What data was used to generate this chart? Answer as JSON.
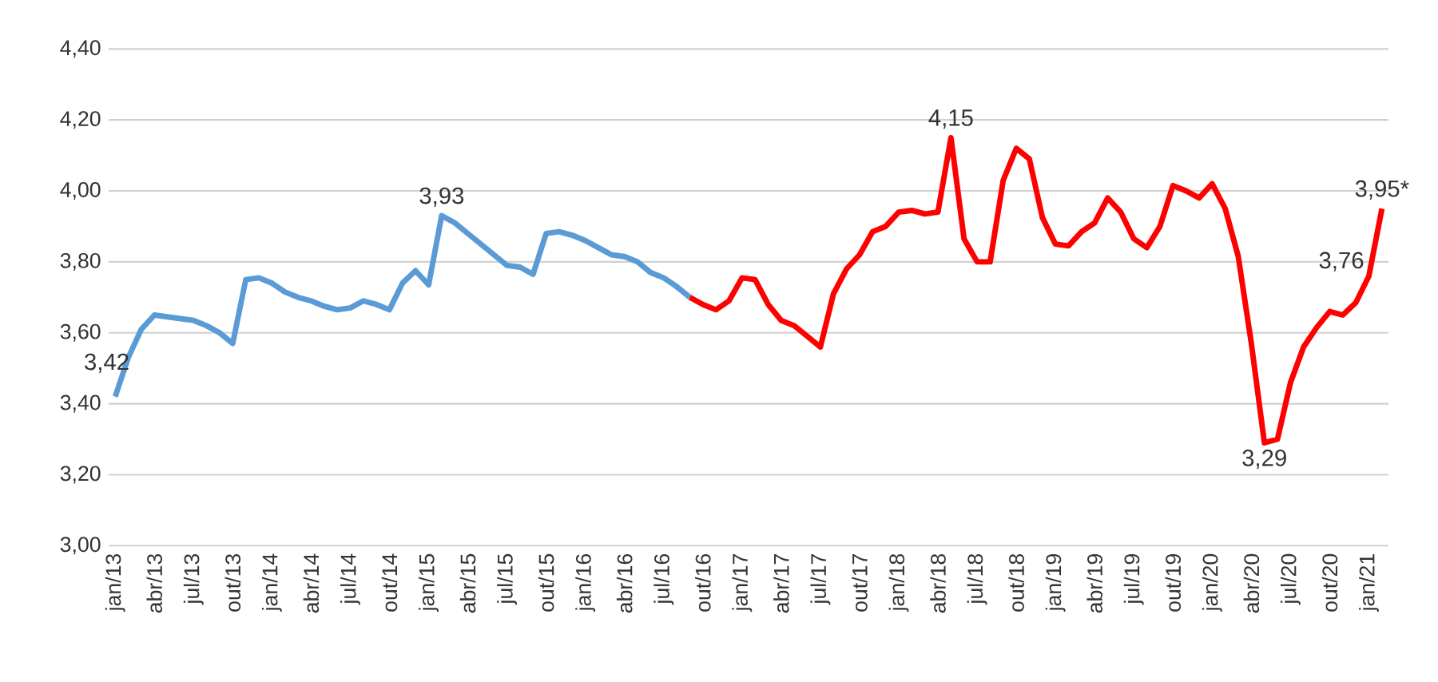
{
  "chart_data": {
    "type": "line",
    "categories": [
      "jan/13",
      null,
      null,
      "abr/13",
      null,
      null,
      "jul/13",
      null,
      null,
      "out/13",
      null,
      null,
      "jan/14",
      null,
      null,
      "abr/14",
      null,
      null,
      "jul/14",
      null,
      null,
      "out/14",
      null,
      null,
      "jan/15",
      null,
      null,
      "abr/15",
      null,
      null,
      "jul/15",
      null,
      null,
      "out/15",
      null,
      null,
      "jan/16",
      null,
      null,
      "abr/16",
      null,
      null,
      "jul/16",
      null,
      null,
      "out/16",
      null,
      null,
      "jan/17",
      null,
      null,
      "abr/17",
      null,
      null,
      "jul/17",
      null,
      null,
      "out/17",
      null,
      null,
      "jan/18",
      null,
      null,
      "abr/18",
      null,
      null,
      "jul/18",
      null,
      null,
      "out/18",
      null,
      null,
      "jan/19",
      null,
      null,
      "abr/19",
      null,
      null,
      "jul/19",
      null,
      null,
      "out/19",
      null,
      null,
      "jan/20",
      null,
      null,
      "abr/20",
      null,
      null,
      "jul/20",
      null,
      null,
      "out/20",
      null,
      null,
      "jan/21",
      null
    ],
    "series": [
      {
        "color": "#5b9bd5",
        "values": [
          3.42,
          3.53,
          3.61,
          3.65,
          3.645,
          3.64,
          3.635,
          3.62,
          3.6,
          3.57,
          3.75,
          3.755,
          3.74,
          3.715,
          3.7,
          3.69,
          3.675,
          3.665,
          3.67,
          3.69,
          3.68,
          3.665,
          3.74,
          3.775,
          3.735,
          3.93,
          3.91,
          3.88,
          3.85,
          3.82,
          3.79,
          3.785,
          3.765,
          3.88,
          3.885,
          3.875,
          3.86,
          3.84,
          3.82,
          3.815,
          3.8,
          3.77,
          3.755,
          3.73,
          3.7,
          null,
          null,
          null,
          null,
          null,
          null,
          null,
          null,
          null,
          null,
          null,
          null,
          null,
          null,
          null,
          null,
          null,
          null,
          null,
          null,
          null,
          null,
          null,
          null,
          null,
          null,
          null,
          null,
          null,
          null,
          null,
          null,
          null,
          null,
          null,
          null,
          null,
          null,
          null,
          null,
          null,
          null,
          null,
          null,
          null,
          null,
          null,
          null,
          null,
          null,
          null,
          null,
          null
        ],
        "value_labels": [
          "3,42",
          null,
          null,
          null,
          null,
          null,
          null,
          null,
          null,
          null,
          null,
          null,
          null,
          null,
          null,
          null,
          null,
          null,
          null,
          null,
          null,
          null,
          null,
          null,
          null,
          "3,93",
          null,
          null,
          null,
          null,
          null,
          null,
          null,
          null,
          null,
          null,
          null,
          null,
          null,
          null,
          null,
          null,
          null,
          null,
          null,
          null,
          null,
          null,
          null,
          null,
          null,
          null,
          null,
          null,
          null,
          null,
          null,
          null,
          null,
          null,
          null,
          null,
          null,
          null,
          null,
          null,
          null,
          null,
          null,
          null,
          null,
          null,
          null,
          null,
          null,
          null,
          null,
          null,
          null,
          null,
          null,
          null,
          null,
          null,
          null,
          null,
          null,
          null,
          null,
          null,
          null,
          null,
          null,
          null,
          null,
          null,
          null,
          null
        ]
      },
      {
        "color": "#ff0000",
        "values": [
          null,
          null,
          null,
          null,
          null,
          null,
          null,
          null,
          null,
          null,
          null,
          null,
          null,
          null,
          null,
          null,
          null,
          null,
          null,
          null,
          null,
          null,
          null,
          null,
          null,
          null,
          null,
          null,
          null,
          null,
          null,
          null,
          null,
          null,
          null,
          null,
          null,
          null,
          null,
          null,
          null,
          null,
          null,
          null,
          3.7,
          3.68,
          3.665,
          3.69,
          3.755,
          3.75,
          3.68,
          3.635,
          3.62,
          3.59,
          3.56,
          3.71,
          3.78,
          3.82,
          3.885,
          3.9,
          3.94,
          3.945,
          3.935,
          3.94,
          4.15,
          3.865,
          3.8,
          3.8,
          4.03,
          4.12,
          4.09,
          3.925,
          3.85,
          3.845,
          3.885,
          3.91,
          3.98,
          3.94,
          3.865,
          3.84,
          3.9,
          4.015,
          4.0,
          3.98,
          4.02,
          3.95,
          3.815,
          3.57,
          3.29,
          3.3,
          3.46,
          3.56,
          3.615,
          3.66,
          3.65,
          3.685,
          3.76,
          3.95
        ],
        "value_labels": [
          null,
          null,
          null,
          null,
          null,
          null,
          null,
          null,
          null,
          null,
          null,
          null,
          null,
          null,
          null,
          null,
          null,
          null,
          null,
          null,
          null,
          null,
          null,
          null,
          null,
          null,
          null,
          null,
          null,
          null,
          null,
          null,
          null,
          null,
          null,
          null,
          null,
          null,
          null,
          null,
          null,
          null,
          null,
          null,
          null,
          null,
          null,
          null,
          null,
          null,
          null,
          null,
          null,
          null,
          null,
          null,
          null,
          null,
          null,
          null,
          null,
          null,
          null,
          null,
          "4,15",
          null,
          null,
          null,
          null,
          null,
          null,
          null,
          null,
          null,
          null,
          null,
          null,
          null,
          null,
          null,
          null,
          null,
          null,
          null,
          null,
          null,
          null,
          null,
          "3,29",
          null,
          null,
          null,
          null,
          null,
          null,
          null,
          "3,76",
          "3,95*"
        ]
      }
    ],
    "ylim": [
      3,
      4.4
    ],
    "yticks": [
      {
        "value": 3,
        "label": "3,00"
      },
      {
        "value": 3.2,
        "label": "3,20"
      },
      {
        "value": 3.4,
        "label": "3,40"
      },
      {
        "value": 3.6,
        "label": "3,60"
      },
      {
        "value": 3.8,
        "label": "3,80"
      },
      {
        "value": 4.0,
        "label": "4,00"
      },
      {
        "value": 4.2,
        "label": "4,20"
      },
      {
        "value": 4.4,
        "label": "4,40"
      }
    ],
    "grid": "y"
  }
}
